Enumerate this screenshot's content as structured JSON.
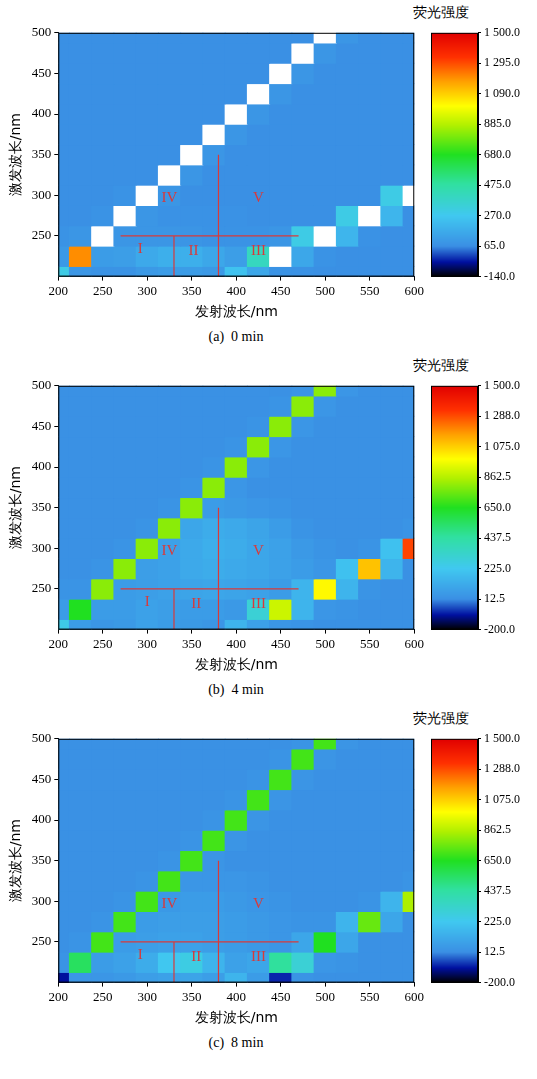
{
  "chart_data": [
    {
      "type": "heatmap",
      "title": "(a)  0 min",
      "x_label": "发射波长/nm",
      "y_label": "激发波长/nm",
      "xlim": [
        200,
        600
      ],
      "ylim": [
        200,
        500
      ],
      "xticks": [
        200,
        250,
        300,
        350,
        400,
        450,
        500,
        550,
        600
      ],
      "yticks": [
        250,
        300,
        350,
        400,
        450,
        500
      ],
      "grid": false,
      "x": [
        200,
        225,
        250,
        275,
        300,
        325,
        350,
        375,
        400,
        425,
        450,
        475,
        500,
        525,
        550,
        575,
        600
      ],
      "y": [
        200,
        225,
        250,
        275,
        300,
        325,
        350,
        375,
        400,
        425,
        450,
        475,
        500
      ],
      "values": [
        [
          300,
          90,
          80,
          80,
          100,
          110,
          110,
          100,
          250,
          150,
          80,
          75,
          70,
          70,
          70,
          70,
          70
        ],
        [
          100,
          1200,
          110,
          120,
          160,
          180,
          180,
          150,
          120,
          400,
          1600,
          150,
          80,
          70,
          70,
          70,
          70
        ],
        [
          80,
          90,
          1800,
          90,
          90,
          90,
          85,
          80,
          80,
          80,
          90,
          300,
          1800,
          200,
          75,
          70,
          70
        ],
        [
          70,
          70,
          80,
          1800,
          90,
          75,
          75,
          75,
          75,
          70,
          70,
          70,
          70,
          300,
          1800,
          200,
          70
        ],
        [
          70,
          70,
          70,
          80,
          1800,
          90,
          70,
          70,
          70,
          70,
          70,
          70,
          70,
          70,
          70,
          300,
          1800
        ],
        [
          70,
          70,
          70,
          70,
          70,
          1800,
          90,
          70,
          70,
          70,
          70,
          70,
          70,
          70,
          70,
          70,
          70
        ],
        [
          70,
          70,
          70,
          70,
          70,
          70,
          1800,
          90,
          70,
          70,
          70,
          70,
          70,
          70,
          70,
          70,
          70
        ],
        [
          70,
          70,
          70,
          70,
          70,
          70,
          70,
          1800,
          90,
          70,
          70,
          70,
          70,
          70,
          70,
          70,
          70
        ],
        [
          70,
          70,
          70,
          70,
          70,
          70,
          70,
          70,
          1800,
          90,
          70,
          70,
          70,
          70,
          70,
          70,
          70
        ],
        [
          70,
          70,
          70,
          70,
          70,
          70,
          70,
          70,
          70,
          1800,
          90,
          70,
          70,
          70,
          70,
          70,
          70
        ],
        [
          70,
          70,
          70,
          70,
          70,
          70,
          70,
          70,
          70,
          70,
          1800,
          90,
          70,
          70,
          70,
          70,
          70
        ],
        [
          70,
          70,
          70,
          70,
          70,
          70,
          70,
          70,
          70,
          70,
          70,
          1800,
          90,
          70,
          70,
          70,
          70
        ],
        [
          70,
          70,
          70,
          70,
          70,
          70,
          70,
          70,
          70,
          70,
          70,
          70,
          1800,
          90,
          70,
          70,
          70
        ]
      ],
      "colorbar": {
        "title": "荧光强度",
        "range": [
          -140,
          1500
        ],
        "ticks": [
          {
            "value": -140,
            "label": "-140.0"
          },
          {
            "value": 65,
            "label": "65.0"
          },
          {
            "value": 270,
            "label": "270.0"
          },
          {
            "value": 475,
            "label": "475.0"
          },
          {
            "value": 680,
            "label": "680.0"
          },
          {
            "value": 885,
            "label": "885.0"
          },
          {
            "value": 1090,
            "label": "1 090.0"
          },
          {
            "value": 1295,
            "label": "1 295.0"
          },
          {
            "value": 1500,
            "label": "1 500.0"
          }
        ]
      },
      "regions": {
        "color": "#d83a3a",
        "lines": [
          {
            "x": [
              270,
              470
            ],
            "y": [
              250,
              250
            ]
          },
          {
            "x": [
              330,
              330
            ],
            "y": [
              200,
              250
            ]
          },
          {
            "x": [
              380,
              380
            ],
            "y": [
              200,
              350
            ]
          }
        ],
        "labels": [
          {
            "text": "I",
            "x": 292,
            "y": 234
          },
          {
            "text": "II",
            "x": 352,
            "y": 232
          },
          {
            "text": "III",
            "x": 425,
            "y": 232
          },
          {
            "text": "IV",
            "x": 325,
            "y": 297
          },
          {
            "text": "V",
            "x": 425,
            "y": 297
          }
        ]
      }
    },
    {
      "type": "heatmap",
      "title": "(b)  4 min",
      "x_label": "发射波长/nm",
      "y_label": "激发波长/nm",
      "xlim": [
        200,
        600
      ],
      "ylim": [
        200,
        500
      ],
      "xticks": [
        200,
        250,
        300,
        350,
        400,
        450,
        500,
        550,
        600
      ],
      "yticks": [
        250,
        300,
        350,
        400,
        450,
        500
      ],
      "grid": false,
      "x": [
        200,
        225,
        250,
        275,
        300,
        325,
        350,
        375,
        400,
        425,
        450,
        475,
        500,
        525,
        550,
        575,
        600
      ],
      "y": [
        200,
        225,
        250,
        275,
        300,
        325,
        350,
        375,
        400,
        425,
        450,
        475,
        500
      ],
      "values": [
        [
          250,
          60,
          40,
          50,
          80,
          60,
          50,
          40,
          150,
          80,
          40,
          30,
          20,
          20,
          20,
          20,
          20
        ],
        [
          60,
          650,
          60,
          60,
          80,
          70,
          60,
          60,
          50,
          300,
          900,
          150,
          40,
          30,
          20,
          20,
          20
        ],
        [
          30,
          30,
          800,
          60,
          70,
          80,
          90,
          100,
          90,
          80,
          60,
          150,
          1000,
          150,
          30,
          20,
          20
        ],
        [
          20,
          20,
          30,
          800,
          70,
          80,
          110,
          120,
          110,
          100,
          80,
          60,
          40,
          200,
          1100,
          150,
          20
        ],
        [
          20,
          20,
          20,
          30,
          800,
          80,
          110,
          130,
          120,
          100,
          80,
          50,
          30,
          20,
          30,
          200,
          1300
        ],
        [
          20,
          20,
          20,
          20,
          30,
          800,
          100,
          120,
          110,
          90,
          60,
          30,
          20,
          20,
          20,
          20,
          30
        ],
        [
          20,
          20,
          20,
          20,
          20,
          30,
          800,
          60,
          50,
          40,
          30,
          20,
          20,
          20,
          20,
          20,
          20
        ],
        [
          20,
          20,
          20,
          20,
          20,
          20,
          30,
          800,
          40,
          20,
          20,
          20,
          20,
          20,
          20,
          20,
          20
        ],
        [
          20,
          20,
          20,
          20,
          20,
          20,
          20,
          30,
          800,
          40,
          20,
          20,
          20,
          20,
          20,
          20,
          20
        ],
        [
          20,
          20,
          20,
          20,
          20,
          20,
          20,
          20,
          30,
          800,
          40,
          20,
          20,
          20,
          20,
          20,
          20
        ],
        [
          20,
          20,
          20,
          20,
          20,
          20,
          20,
          20,
          20,
          30,
          800,
          40,
          20,
          20,
          20,
          20,
          20
        ],
        [
          20,
          20,
          20,
          20,
          20,
          20,
          20,
          20,
          20,
          20,
          30,
          800,
          40,
          20,
          20,
          20,
          20
        ],
        [
          20,
          20,
          20,
          20,
          20,
          20,
          20,
          20,
          20,
          20,
          20,
          30,
          800,
          40,
          20,
          20,
          20
        ]
      ],
      "colorbar": {
        "title": "荧光强度",
        "range": [
          -200,
          1500
        ],
        "ticks": [
          {
            "value": -200,
            "label": "-200.0"
          },
          12.5,
          {
            "value": 225,
            "label": "225.0"
          },
          437.5,
          {
            "value": 650,
            "label": "650.0"
          },
          862.5,
          {
            "value": 1075,
            "label": "1 075.0"
          },
          {
            "value": 1288,
            "label": "1 288.0"
          },
          {
            "value": 1500,
            "label": "1 500.0"
          }
        ]
      },
      "regions": {
        "color": "#d83a3a",
        "lines": [
          {
            "x": [
              270,
              470
            ],
            "y": [
              250,
              250
            ]
          },
          {
            "x": [
              330,
              330
            ],
            "y": [
              200,
              250
            ]
          },
          {
            "x": [
              380,
              380
            ],
            "y": [
              200,
              350
            ]
          }
        ],
        "labels": [
          {
            "text": "I",
            "x": 300,
            "y": 234
          },
          {
            "text": "II",
            "x": 355,
            "y": 232
          },
          {
            "text": "III",
            "x": 425,
            "y": 232
          },
          {
            "text": "IV",
            "x": 325,
            "y": 297
          },
          {
            "text": "V",
            "x": 425,
            "y": 297
          }
        ]
      }
    },
    {
      "type": "heatmap",
      "title": "(c)  8 min",
      "x_label": "发射波长/nm",
      "y_label": "激发波长/nm",
      "xlim": [
        200,
        600
      ],
      "ylim": [
        200,
        500
      ],
      "xticks": [
        200,
        250,
        300,
        350,
        400,
        450,
        500,
        550,
        600
      ],
      "yticks": [
        250,
        300,
        350,
        400,
        450,
        500
      ],
      "grid": false,
      "x": [
        200,
        225,
        250,
        275,
        300,
        325,
        350,
        375,
        400,
        425,
        450,
        475,
        500,
        525,
        550,
        575,
        600
      ],
      "y": [
        200,
        225,
        250,
        275,
        300,
        325,
        350,
        375,
        400,
        425,
        450,
        475,
        500
      ],
      "values": [
        [
          -100,
          40,
          40,
          50,
          70,
          80,
          90,
          70,
          150,
          60,
          -80,
          30,
          20,
          20,
          20,
          20,
          20
        ],
        [
          30,
          550,
          60,
          80,
          120,
          220,
          260,
          150,
          80,
          100,
          450,
          300,
          40,
          30,
          20,
          20,
          20
        ],
        [
          20,
          30,
          700,
          60,
          70,
          80,
          80,
          70,
          60,
          50,
          40,
          100,
          650,
          100,
          20,
          20,
          20
        ],
        [
          20,
          20,
          30,
          700,
          60,
          70,
          70,
          70,
          60,
          50,
          40,
          30,
          30,
          150,
          750,
          100,
          20
        ],
        [
          20,
          20,
          20,
          30,
          700,
          50,
          60,
          60,
          50,
          40,
          30,
          20,
          20,
          20,
          30,
          150,
          850
        ],
        [
          20,
          20,
          20,
          20,
          30,
          700,
          40,
          40,
          40,
          30,
          20,
          20,
          20,
          20,
          20,
          20,
          30
        ],
        [
          20,
          20,
          20,
          20,
          20,
          30,
          700,
          35,
          20,
          20,
          20,
          20,
          20,
          20,
          20,
          20,
          20
        ],
        [
          20,
          20,
          20,
          20,
          20,
          20,
          30,
          700,
          35,
          20,
          20,
          20,
          20,
          20,
          20,
          20,
          20
        ],
        [
          20,
          20,
          20,
          20,
          20,
          20,
          20,
          30,
          700,
          35,
          20,
          20,
          20,
          20,
          20,
          20,
          20
        ],
        [
          20,
          20,
          20,
          20,
          20,
          20,
          20,
          20,
          30,
          700,
          35,
          20,
          20,
          20,
          20,
          20,
          20
        ],
        [
          20,
          20,
          20,
          20,
          20,
          20,
          20,
          20,
          20,
          30,
          700,
          35,
          20,
          20,
          20,
          20,
          20
        ],
        [
          20,
          20,
          20,
          20,
          20,
          20,
          20,
          20,
          20,
          20,
          30,
          700,
          35,
          20,
          20,
          20,
          20
        ],
        [
          20,
          20,
          20,
          20,
          20,
          20,
          20,
          20,
          20,
          20,
          20,
          30,
          700,
          35,
          20,
          20,
          20
        ]
      ],
      "colorbar": {
        "title": "荧光强度",
        "range": [
          -200,
          1500
        ],
        "ticks": [
          {
            "value": -200,
            "label": "-200.0"
          },
          12.5,
          {
            "value": 225,
            "label": "225.0"
          },
          437.5,
          {
            "value": 650,
            "label": "650.0"
          },
          862.5,
          {
            "value": 1075,
            "label": "1 075.0"
          },
          {
            "value": 1288,
            "label": "1 288.0"
          },
          {
            "value": 1500,
            "label": "1 500.0"
          }
        ]
      },
      "regions": {
        "color": "#d83a3a",
        "lines": [
          {
            "x": [
              270,
              470
            ],
            "y": [
              250,
              250
            ]
          },
          {
            "x": [
              330,
              330
            ],
            "y": [
              200,
              250
            ]
          },
          {
            "x": [
              380,
              380
            ],
            "y": [
              200,
              350
            ]
          }
        ],
        "labels": [
          {
            "text": "I",
            "x": 292,
            "y": 234
          },
          {
            "text": "II",
            "x": 355,
            "y": 232
          },
          {
            "text": "III",
            "x": 425,
            "y": 232
          },
          {
            "text": "IV",
            "x": 325,
            "y": 297
          },
          {
            "text": "V",
            "x": 425,
            "y": 297
          }
        ]
      }
    }
  ]
}
